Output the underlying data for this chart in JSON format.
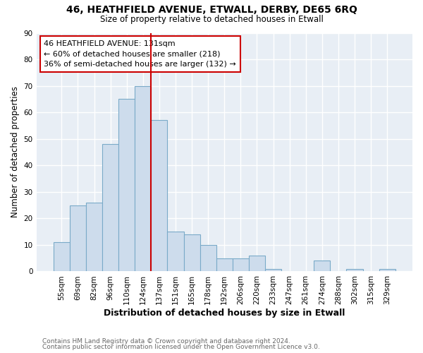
{
  "title": "46, HEATHFIELD AVENUE, ETWALL, DERBY, DE65 6RQ",
  "subtitle": "Size of property relative to detached houses in Etwall",
  "xlabel": "Distribution of detached houses by size in Etwall",
  "ylabel": "Number of detached properties",
  "bar_labels": [
    "55sqm",
    "69sqm",
    "82sqm",
    "96sqm",
    "110sqm",
    "124sqm",
    "137sqm",
    "151sqm",
    "165sqm",
    "178sqm",
    "192sqm",
    "206sqm",
    "220sqm",
    "233sqm",
    "247sqm",
    "261sqm",
    "274sqm",
    "288sqm",
    "302sqm",
    "315sqm",
    "329sqm"
  ],
  "bar_values": [
    11,
    25,
    26,
    48,
    65,
    70,
    57,
    15,
    14,
    10,
    5,
    5,
    6,
    1,
    0,
    0,
    4,
    0,
    1,
    0,
    1
  ],
  "bar_color": "#cddcec",
  "bar_edge_color": "#7aaac8",
  "vline_x_index": 5.5,
  "vline_color": "#cc0000",
  "ylim": [
    0,
    90
  ],
  "yticks": [
    0,
    10,
    20,
    30,
    40,
    50,
    60,
    70,
    80,
    90
  ],
  "annotation_text": "46 HEATHFIELD AVENUE: 131sqm\n← 60% of detached houses are smaller (218)\n36% of semi-detached houses are larger (132) →",
  "annotation_box_color": "#ffffff",
  "annotation_box_edge": "#cc0000",
  "footer_line1": "Contains HM Land Registry data © Crown copyright and database right 2024.",
  "footer_line2": "Contains public sector information licensed under the Open Government Licence v3.0.",
  "background_color": "#ffffff",
  "plot_bg_color": "#e8eef5"
}
